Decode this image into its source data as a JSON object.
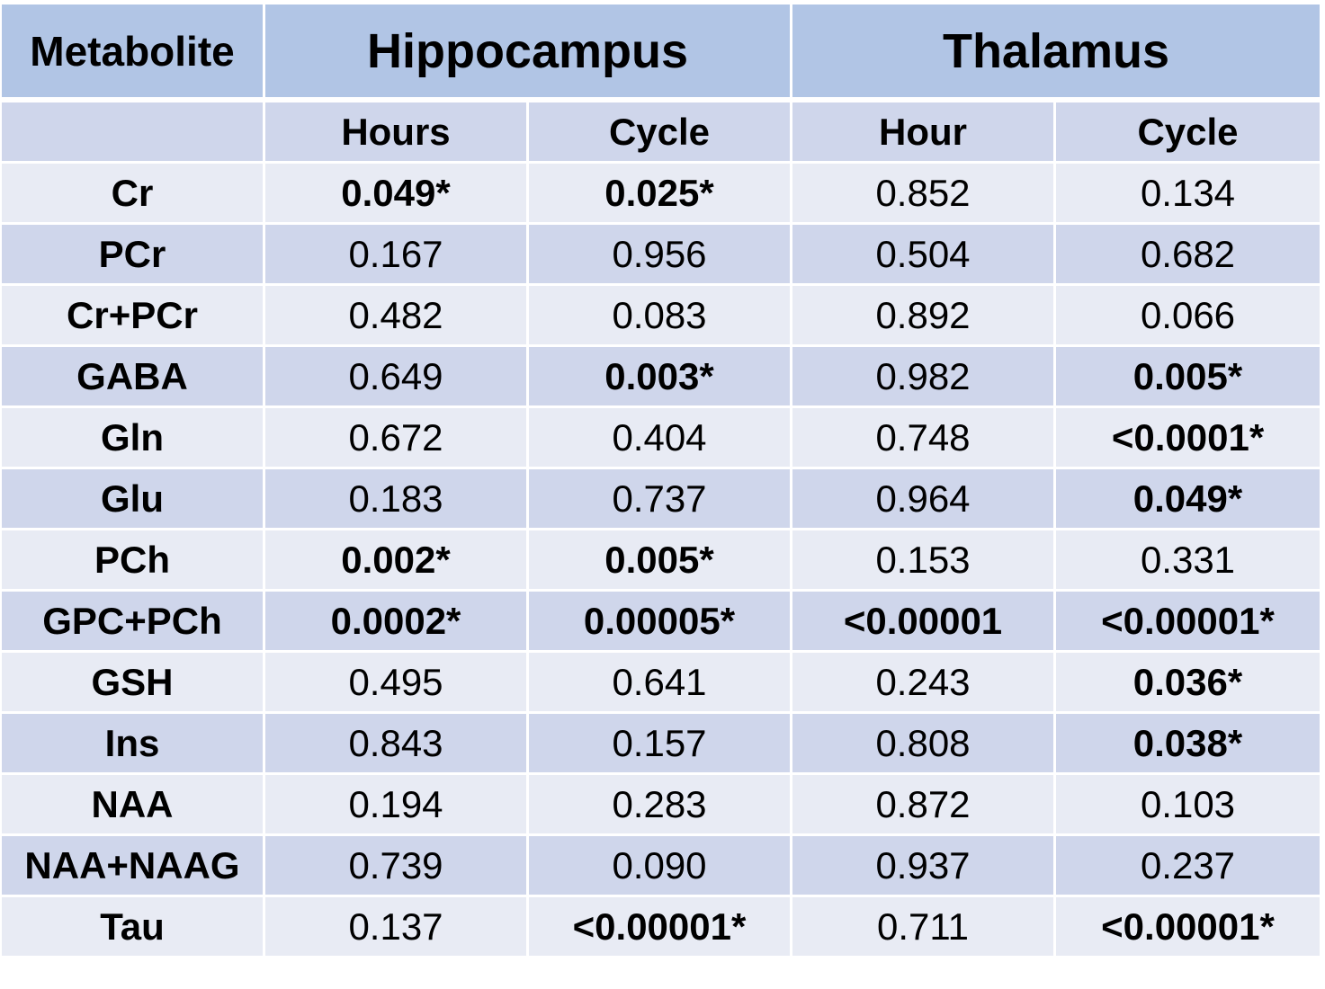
{
  "chart_data": {
    "type": "table",
    "header": {
      "metabolite": "Metabolite",
      "regions": [
        "Hippocampus",
        "Thalamus"
      ]
    },
    "subheaders": [
      "",
      "Hours",
      "Cycle",
      "Hour",
      "Cycle"
    ],
    "rows": [
      {
        "name": "Cr",
        "cells": [
          {
            "v": "0.049*",
            "sig": true
          },
          {
            "v": "0.025*",
            "sig": true
          },
          {
            "v": "0.852",
            "sig": false
          },
          {
            "v": "0.134",
            "sig": false
          }
        ]
      },
      {
        "name": "PCr",
        "cells": [
          {
            "v": "0.167",
            "sig": false
          },
          {
            "v": "0.956",
            "sig": false
          },
          {
            "v": "0.504",
            "sig": false
          },
          {
            "v": "0.682",
            "sig": false
          }
        ]
      },
      {
        "name": "Cr+PCr",
        "cells": [
          {
            "v": "0.482",
            "sig": false
          },
          {
            "v": "0.083",
            "sig": false
          },
          {
            "v": "0.892",
            "sig": false
          },
          {
            "v": "0.066",
            "sig": false
          }
        ]
      },
      {
        "name": "GABA",
        "cells": [
          {
            "v": "0.649",
            "sig": false
          },
          {
            "v": "0.003*",
            "sig": true
          },
          {
            "v": "0.982",
            "sig": false
          },
          {
            "v": "0.005*",
            "sig": true
          }
        ]
      },
      {
        "name": "Gln",
        "cells": [
          {
            "v": "0.672",
            "sig": false
          },
          {
            "v": "0.404",
            "sig": false
          },
          {
            "v": "0.748",
            "sig": false
          },
          {
            "v": "<0.0001*",
            "sig": true
          }
        ]
      },
      {
        "name": "Glu",
        "cells": [
          {
            "v": "0.183",
            "sig": false
          },
          {
            "v": "0.737",
            "sig": false
          },
          {
            "v": "0.964",
            "sig": false
          },
          {
            "v": "0.049*",
            "sig": true
          }
        ]
      },
      {
        "name": "PCh",
        "cells": [
          {
            "v": "0.002*",
            "sig": true
          },
          {
            "v": "0.005*",
            "sig": true
          },
          {
            "v": "0.153",
            "sig": false
          },
          {
            "v": "0.331",
            "sig": false
          }
        ]
      },
      {
        "name": "GPC+PCh",
        "cells": [
          {
            "v": "0.0002*",
            "sig": true
          },
          {
            "v": "0.00005*",
            "sig": true
          },
          {
            "v": "<0.00001",
            "sig": true
          },
          {
            "v": "<0.00001*",
            "sig": true
          }
        ]
      },
      {
        "name": "GSH",
        "cells": [
          {
            "v": "0.495",
            "sig": false
          },
          {
            "v": "0.641",
            "sig": false
          },
          {
            "v": "0.243",
            "sig": false
          },
          {
            "v": "0.036*",
            "sig": true
          }
        ]
      },
      {
        "name": "Ins",
        "cells": [
          {
            "v": "0.843",
            "sig": false
          },
          {
            "v": "0.157",
            "sig": false
          },
          {
            "v": "0.808",
            "sig": false
          },
          {
            "v": "0.038*",
            "sig": true
          }
        ]
      },
      {
        "name": "NAA",
        "cells": [
          {
            "v": "0.194",
            "sig": false
          },
          {
            "v": "0.283",
            "sig": false
          },
          {
            "v": "0.872",
            "sig": false
          },
          {
            "v": "0.103",
            "sig": false
          }
        ]
      },
      {
        "name": "NAA+NAAG",
        "cells": [
          {
            "v": "0.739",
            "sig": false
          },
          {
            "v": "0.090",
            "sig": false
          },
          {
            "v": "0.937",
            "sig": false
          },
          {
            "v": "0.237",
            "sig": false
          }
        ]
      },
      {
        "name": "Tau",
        "cells": [
          {
            "v": "0.137",
            "sig": false
          },
          {
            "v": "<0.00001*",
            "sig": true
          },
          {
            "v": "0.711",
            "sig": false
          },
          {
            "v": "<0.00001*",
            "sig": true
          }
        ]
      }
    ],
    "colors": {
      "header_bg": "#b1c5e5",
      "band_dark": "#cfd6eb",
      "band_light": "#e8ebf4",
      "significant_text": "#2f55a0",
      "normal_text": "#000000"
    }
  }
}
